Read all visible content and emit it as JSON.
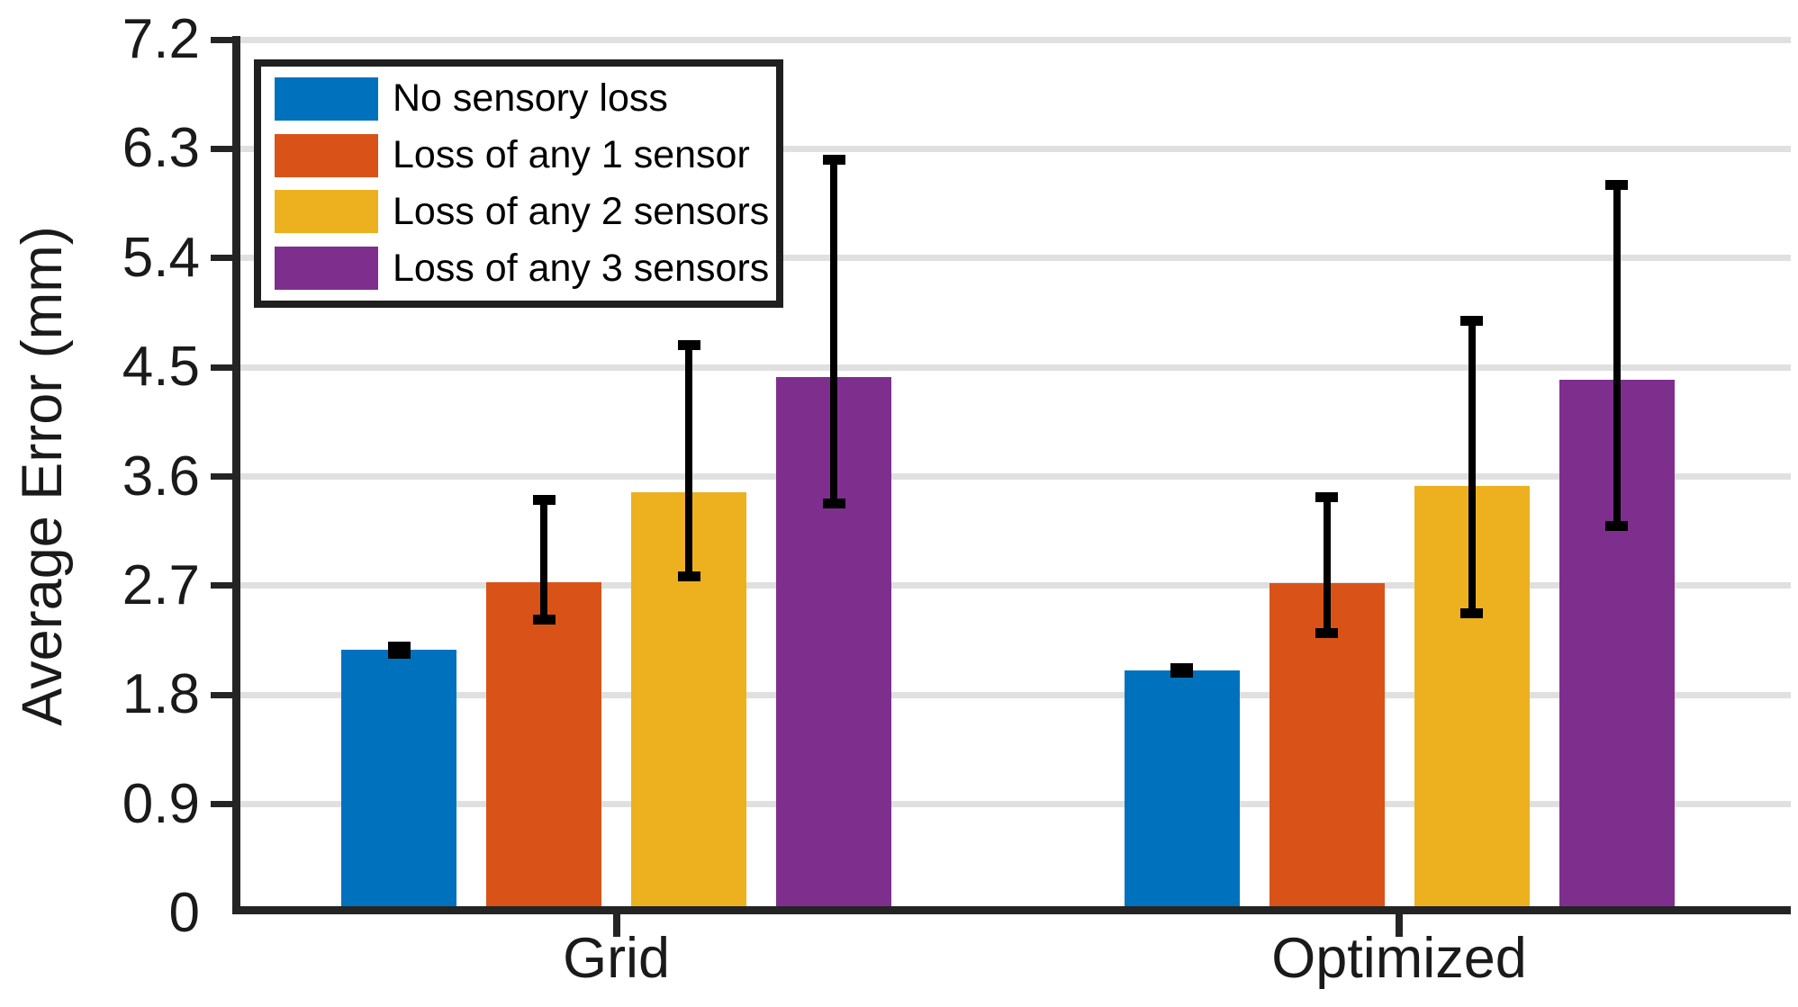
{
  "chart_data": {
    "type": "bar",
    "title": "",
    "xlabel": "",
    "ylabel": "Average Error (mm)",
    "categories": [
      "Grid",
      "Optimized"
    ],
    "series": [
      {
        "name": "No sensory loss",
        "color": "#0072BD",
        "values": [
          2.17,
          2.0
        ],
        "error_low": [
          2.14,
          1.98
        ],
        "error_high": [
          2.2,
          2.02
        ]
      },
      {
        "name": "Loss of any 1 sensor",
        "color": "#D95319",
        "values": [
          2.73,
          2.72
        ],
        "error_low": [
          2.42,
          2.31
        ],
        "error_high": [
          3.41,
          3.43
        ]
      },
      {
        "name": "Loss of any 2 sensors",
        "color": "#EDB120",
        "values": [
          3.47,
          3.52
        ],
        "error_low": [
          2.78,
          2.47
        ],
        "error_high": [
          4.68,
          4.88
        ]
      },
      {
        "name": "Loss of any 3 sensors",
        "color": "#7E2F8E",
        "values": [
          4.42,
          4.4
        ],
        "error_low": [
          3.38,
          3.19
        ],
        "error_high": [
          6.21,
          6.0
        ]
      }
    ],
    "ylim": [
      0,
      7.2
    ],
    "yticks": [
      0,
      0.9,
      1.8,
      2.7,
      3.6,
      4.5,
      5.4,
      6.3,
      7.2
    ],
    "ytick_labels": [
      "0",
      "0.9",
      "1.8",
      "2.7",
      "3.6",
      "4.5",
      "5.4",
      "6.3",
      "7.2"
    ],
    "grid": true,
    "grid_color": "#e0e0e0",
    "axis_color": "#242424",
    "errorbar_color": "#000000",
    "legend_position": "top-left",
    "legend_border_color": "#1f1f1f"
  }
}
